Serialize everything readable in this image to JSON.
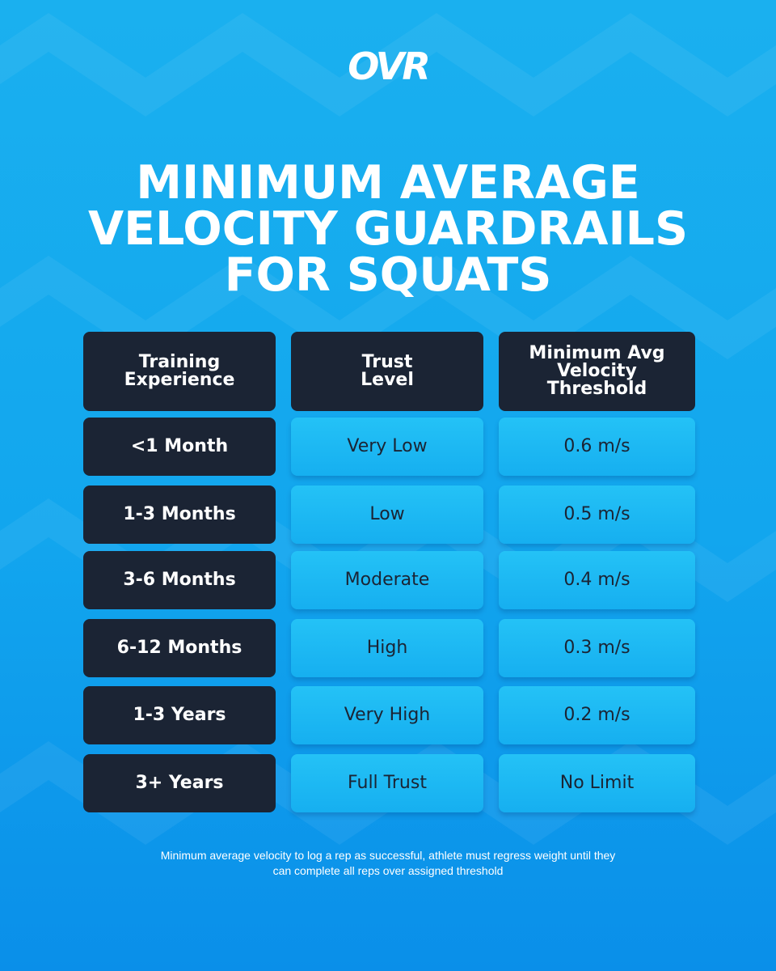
{
  "logo": "OVR",
  "title": {
    "line1": "MINIMUM AVERAGE",
    "line2": "VELOCITY GUARDRAILS",
    "line3": "FOR SQUATS"
  },
  "table": {
    "headers": [
      "Training\nExperience",
      "Trust\nLevel",
      "Minimum Avg\nVelocity\nThreshold"
    ],
    "rows": [
      {
        "experience": "<1 Month",
        "trust": "Very Low",
        "threshold": "0.6 m/s"
      },
      {
        "experience": "1-3 Months",
        "trust": "Low",
        "threshold": "0.5 m/s"
      },
      {
        "experience": "3-6 Months",
        "trust": "Moderate",
        "threshold": "0.4 m/s"
      },
      {
        "experience": "6-12 Months",
        "trust": "High",
        "threshold": "0.3 m/s"
      },
      {
        "experience": "1-3 Years",
        "trust": "Very High",
        "threshold": "0.2 m/s"
      },
      {
        "experience": "3+ Years",
        "trust": "Full Trust",
        "threshold": "No Limit"
      }
    ]
  },
  "footnote": {
    "line1": "Minimum average velocity to log a rep as successful, athlete must regress weight until they",
    "line2": "can complete all reps over assigned threshold"
  },
  "colors": {
    "background_top": "#1ab0ef",
    "background_bottom": "#0a8fe9",
    "dark_cell": "#1b2434",
    "light_cell": "#1cb8f3",
    "text_light": "#ffffff"
  }
}
